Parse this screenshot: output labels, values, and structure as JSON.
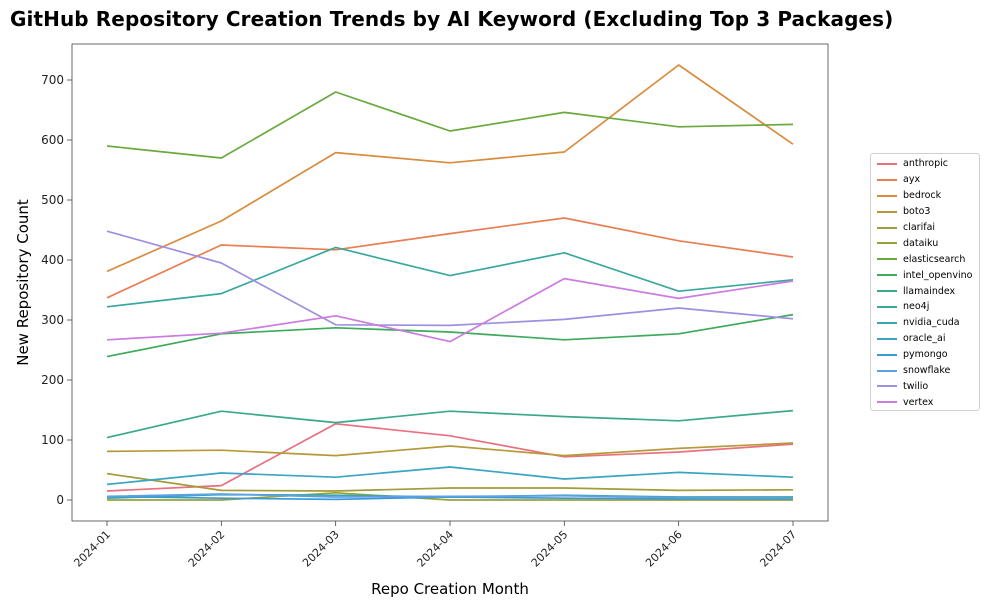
{
  "chart_data": {
    "type": "line",
    "title": "GitHub Repository Creation Trends by AI Keyword (Excluding Top 3 Packages)",
    "xlabel": "Repo Creation Month",
    "ylabel": "New Repository Count",
    "x": [
      "2024-01",
      "2024-02",
      "2024-03",
      "2024-04",
      "2024-05",
      "2024-06",
      "2024-07"
    ],
    "ylim": [
      -35,
      760
    ],
    "yticks": [
      0,
      100,
      200,
      300,
      400,
      500,
      600,
      700
    ],
    "grid": false,
    "legend_position": "right",
    "series": [
      {
        "name": "anthropic",
        "color": "#e8707f",
        "values": [
          15,
          24,
          127,
          107,
          72,
          80,
          93
        ]
      },
      {
        "name": "ayx",
        "color": "#e87e52",
        "values": [
          337,
          425,
          417,
          444,
          470,
          432,
          405
        ]
      },
      {
        "name": "bedrock",
        "color": "#d98c3d",
        "values": [
          381,
          465,
          579,
          562,
          580,
          725,
          593
        ]
      },
      {
        "name": "boto3",
        "color": "#b69a3a",
        "values": [
          81,
          83,
          74,
          90,
          74,
          86,
          95
        ]
      },
      {
        "name": "clarifai",
        "color": "#a29c3a",
        "values": [
          44,
          16,
          15,
          20,
          20,
          16,
          17
        ]
      },
      {
        "name": "dataiku",
        "color": "#97a33a",
        "values": [
          0,
          0,
          12,
          0,
          0,
          0,
          0
        ]
      },
      {
        "name": "elasticsearch",
        "color": "#6aaa3d",
        "values": [
          590,
          570,
          680,
          615,
          646,
          622,
          626
        ]
      },
      {
        "name": "intel_openvino",
        "color": "#3daa5c",
        "values": [
          239,
          277,
          287,
          280,
          267,
          277,
          309
        ]
      },
      {
        "name": "llamaindex",
        "color": "#3aa98a",
        "values": [
          104,
          148,
          129,
          148,
          139,
          132,
          149
        ]
      },
      {
        "name": "neo4j",
        "color": "#3aa89e",
        "values": [
          322,
          344,
          421,
          374,
          412,
          348,
          367
        ]
      },
      {
        "name": "nvidia_cuda",
        "color": "#3aa6b0",
        "values": [
          3,
          9,
          8,
          5,
          8,
          5,
          5
        ]
      },
      {
        "name": "oracle_ai",
        "color": "#3aa4c3",
        "values": [
          26,
          45,
          38,
          55,
          35,
          46,
          38
        ]
      },
      {
        "name": "pymongo",
        "color": "#3a9ad6",
        "values": [
          6,
          3,
          1,
          5,
          3,
          2,
          2
        ]
      },
      {
        "name": "snowflake",
        "color": "#5ea0e6",
        "values": [
          6,
          10,
          5,
          6,
          7,
          4,
          3
        ]
      },
      {
        "name": "twilio",
        "color": "#9f8fe0",
        "values": [
          448,
          395,
          292,
          291,
          301,
          320,
          302
        ]
      },
      {
        "name": "vertex",
        "color": "#cc7be0",
        "values": [
          267,
          278,
          307,
          264,
          369,
          336,
          365
        ]
      }
    ]
  }
}
